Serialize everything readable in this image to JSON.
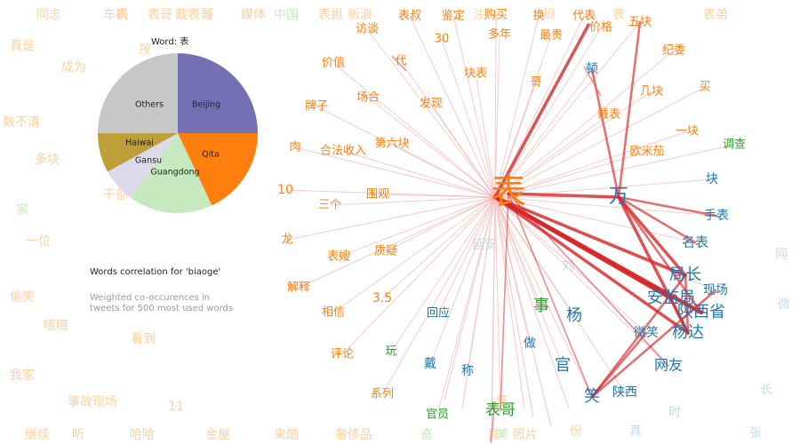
{
  "pie": {
    "title": "Word: 表",
    "slices": [
      {
        "label": "Beijing",
        "value": 25,
        "color": "#7570b3"
      },
      {
        "label": "Qita",
        "value": 18,
        "color": "#ff7f0e"
      },
      {
        "label": "Guangdong",
        "value": 17,
        "color": "#c7e9c0"
      },
      {
        "label": "Gansu",
        "value": 7,
        "color": "#dadaeb"
      },
      {
        "label": "Haiwai",
        "value": 8,
        "color": "#bd9e39"
      },
      {
        "label": "Others",
        "value": 25,
        "color": "#c7c7c7"
      }
    ]
  },
  "caption": {
    "title": "Words correlation for 'biaoge'",
    "subtitle_line1": "Weighted co-occurences in",
    "subtitle_line2": "tweets for 500 most used words"
  },
  "colors": {
    "orange": "#ff7f0e",
    "blue": "#1f77b4",
    "green": "#2ca02c",
    "edge": "#d62728",
    "faint_orange": "#fdd0a2",
    "faint_blue": "#c6dbef",
    "faint_green": "#c7e9c0"
  },
  "chart_data": {
    "type": "network",
    "title": "Words correlation for 'biaoge'",
    "nodes": [
      {
        "id": "n1",
        "label": "表",
        "color": "#ff7f0e",
        "size": 40
      },
      {
        "id": "n2",
        "label": "万",
        "color": "#1f77b4",
        "size": 22
      },
      {
        "id": "n3",
        "label": "表哥",
        "color": "#2ca02c",
        "size": 17
      },
      {
        "id": "n4",
        "label": "局长",
        "color": "#1f77b4",
        "size": 18
      },
      {
        "id": "n5",
        "label": "安监局",
        "color": "#1f77b4",
        "size": 18
      },
      {
        "id": "n6",
        "label": "陕西省",
        "color": "#1f77b4",
        "size": 18
      },
      {
        "id": "n7",
        "label": "杨达",
        "color": "#1f77b4",
        "size": 18
      },
      {
        "id": "n8",
        "label": "杨",
        "color": "#1f77b4",
        "size": 18
      },
      {
        "id": "n9",
        "label": "事",
        "color": "#2ca02c",
        "size": 18
      },
      {
        "id": "n10",
        "label": "官",
        "color": "#1f77b4",
        "size": 18
      },
      {
        "id": "n11",
        "label": "笑",
        "color": "#1f77b4",
        "size": 18
      },
      {
        "id": "n12",
        "label": "网友",
        "color": "#1f77b4",
        "size": 16
      },
      {
        "id": "n13",
        "label": "微笑",
        "color": "#1f77b4",
        "size": 14
      },
      {
        "id": "n14",
        "label": "现场",
        "color": "#1f77b4",
        "size": 14
      },
      {
        "id": "n15",
        "label": "名表",
        "color": "#1f77b4",
        "size": 15
      },
      {
        "id": "n16",
        "label": "手表",
        "color": "#1f77b4",
        "size": 14
      },
      {
        "id": "n17",
        "label": "块",
        "color": "#1f77b4",
        "size": 14
      },
      {
        "id": "n18",
        "label": "陕西",
        "color": "#1f77b4",
        "size": 14
      },
      {
        "id": "n19",
        "label": "顿",
        "color": "#1f77b4",
        "size": 14
      },
      {
        "id": "n20",
        "label": "做",
        "color": "#1f77b4",
        "size": 14
      },
      {
        "id": "n21",
        "label": "回应",
        "color": "#1f77b4",
        "size": 13
      },
      {
        "id": "n22",
        "label": "戴",
        "color": "#1f77b4",
        "size": 14
      },
      {
        "id": "n23",
        "label": "称",
        "color": "#1f77b4",
        "size": 14
      },
      {
        "id": "n24",
        "label": "官员",
        "color": "#2ca02c",
        "size": 13
      },
      {
        "id": "n25",
        "label": "玩",
        "color": "#2ca02c",
        "size": 13
      },
      {
        "id": "n26",
        "label": "调查",
        "color": "#2ca02c",
        "size": 13
      },
      {
        "id": "n27",
        "label": "代表",
        "color": "#ff7f0e",
        "size": 13
      },
      {
        "id": "n28",
        "label": "价格",
        "color": "#ff7f0e",
        "size": 13
      },
      {
        "id": "n29",
        "label": "五块",
        "color": "#ff7f0e",
        "size": 13
      },
      {
        "id": "n30",
        "label": "纪委",
        "color": "#ff7f0e",
        "size": 13
      },
      {
        "id": "n31",
        "label": "买",
        "color": "#ff7f0e",
        "size": 13
      },
      {
        "id": "n32",
        "label": "几块",
        "color": "#ff7f0e",
        "size": 13
      },
      {
        "id": "n33",
        "label": "一块",
        "color": "#ff7f0e",
        "size": 13
      },
      {
        "id": "n34",
        "label": "欧米茄",
        "color": "#ff7f0e",
        "size": 13
      },
      {
        "id": "n35",
        "label": "戴表",
        "color": "#ff7f0e",
        "size": 13
      },
      {
        "id": "n36",
        "label": "哥",
        "color": "#ff7f0e",
        "size": 13
      },
      {
        "id": "n37",
        "label": "最贵",
        "color": "#ff7f0e",
        "size": 13
      },
      {
        "id": "n38",
        "label": "换",
        "color": "#ff7f0e",
        "size": 13
      },
      {
        "id": "n39",
        "label": "多年",
        "color": "#ff7f0e",
        "size": 13
      },
      {
        "id": "n40",
        "label": "购买",
        "color": "#ff7f0e",
        "size": 13
      },
      {
        "id": "n41",
        "label": "鉴定",
        "color": "#ff7f0e",
        "size": 13
      },
      {
        "id": "n42",
        "label": "表叔",
        "color": "#ff7f0e",
        "size": 13
      },
      {
        "id": "n43",
        "label": "30",
        "color": "#ff7f0e",
        "size": 13
      },
      {
        "id": "n44",
        "label": "访谈",
        "color": "#ff7f0e",
        "size": 13
      },
      {
        "id": "n45",
        "label": "价值",
        "color": "#ff7f0e",
        "size": 13
      },
      {
        "id": "n46",
        "label": "代",
        "color": "#ff7f0e",
        "size": 13
      },
      {
        "id": "n47",
        "label": "块表",
        "color": "#ff7f0e",
        "size": 13
      },
      {
        "id": "n48",
        "label": "牌子",
        "color": "#ff7f0e",
        "size": 13
      },
      {
        "id": "n49",
        "label": "场合",
        "color": "#ff7f0e",
        "size": 13
      },
      {
        "id": "n50",
        "label": "发现",
        "color": "#ff7f0e",
        "size": 13
      },
      {
        "id": "n51",
        "label": "肉",
        "color": "#ff7f0e",
        "size": 13
      },
      {
        "id": "n52",
        "label": "合法收入",
        "color": "#ff7f0e",
        "size": 13
      },
      {
        "id": "n53",
        "label": "第六块",
        "color": "#ff7f0e",
        "size": 13
      },
      {
        "id": "n54",
        "label": "10",
        "color": "#ff7f0e",
        "size": 14
      },
      {
        "id": "n55",
        "label": "三个",
        "color": "#ff7f0e",
        "size": 13
      },
      {
        "id": "n56",
        "label": "围观",
        "color": "#ff7f0e",
        "size": 13
      },
      {
        "id": "n57",
        "label": "龙",
        "color": "#ff7f0e",
        "size": 13
      },
      {
        "id": "n58",
        "label": "表嫂",
        "color": "#ff7f0e",
        "size": 13
      },
      {
        "id": "n59",
        "label": "质疑",
        "color": "#ff7f0e",
        "size": 13
      },
      {
        "id": "n60",
        "label": "解释",
        "color": "#ff7f0e",
        "size": 13
      },
      {
        "id": "n61",
        "label": "3.5",
        "color": "#ff7f0e",
        "size": 14
      },
      {
        "id": "n62",
        "label": "相信",
        "color": "#ff7f0e",
        "size": 13
      },
      {
        "id": "n63",
        "label": "评论",
        "color": "#ff7f0e",
        "size": 13
      },
      {
        "id": "n64",
        "label": "系列",
        "color": "#ff7f0e",
        "size": 13
      }
    ],
    "edges": [
      {
        "source": "n1",
        "target": "n5",
        "weight": 4
      },
      {
        "source": "n1",
        "target": "n6",
        "weight": 4
      },
      {
        "source": "n1",
        "target": "n4",
        "weight": 3
      },
      {
        "source": "n1",
        "target": "n7",
        "weight": 3
      },
      {
        "source": "n1",
        "target": "n2",
        "weight": 3
      },
      {
        "source": "n1",
        "target": "n27",
        "weight": 3
      },
      {
        "source": "n2",
        "target": "n4",
        "weight": 3
      },
      {
        "source": "n2",
        "target": "n7",
        "weight": 3
      },
      {
        "source": "n2",
        "target": "n6",
        "weight": 2
      },
      {
        "source": "n2",
        "target": "n15",
        "weight": 2
      },
      {
        "source": "n2",
        "target": "n16",
        "weight": 2
      },
      {
        "source": "n2",
        "target": "n29",
        "weight": 2
      },
      {
        "source": "n2",
        "target": "n19",
        "weight": 2
      },
      {
        "source": "n5",
        "target": "n7",
        "weight": 2
      },
      {
        "source": "n4",
        "target": "n7",
        "weight": 2
      },
      {
        "source": "n11",
        "target": "n14",
        "weight": 2
      },
      {
        "source": "n11",
        "target": "n13",
        "weight": 2
      },
      {
        "source": "n11",
        "target": "n4",
        "weight": 2
      },
      {
        "source": "n1",
        "target": "n3",
        "weight": 1
      },
      {
        "source": "n1",
        "target": "n11",
        "weight": 1
      },
      {
        "source": "n1",
        "target": "n12",
        "weight": 1
      }
    ]
  },
  "background_words": [
    {
      "label": "同志",
      "color": "#fdd0a2"
    },
    {
      "label": "车祸",
      "color": "#fdd0a2"
    },
    {
      "label": "表哥",
      "color": "#fdd0a2"
    },
    {
      "label": "戴表哥",
      "color": "#fdd0a2"
    },
    {
      "label": "媒体",
      "color": "#fdd0a2"
    },
    {
      "label": "中国",
      "color": "#c7e9c0"
    },
    {
      "label": "表姐",
      "color": "#fdd0a2"
    },
    {
      "label": "新浪",
      "color": "#fdd0a2"
    },
    {
      "label": "表弟",
      "color": "#fdd0a2"
    },
    {
      "label": "真是",
      "color": "#fdd0a2"
    },
    {
      "label": "成为",
      "color": "#fdd0a2"
    },
    {
      "label": "数不清",
      "color": "#fdd0a2"
    },
    {
      "label": "多块",
      "color": "#fdd0a2"
    },
    {
      "label": "家",
      "color": "#c7e9c0"
    },
    {
      "label": "一位",
      "color": "#fdd0a2"
    },
    {
      "label": "干部",
      "color": "#fdd0a2"
    },
    {
      "label": "偷笑",
      "color": "#fdd0a2"
    },
    {
      "label": "嘻嘻",
      "color": "#fdd0a2"
    },
    {
      "label": "看到",
      "color": "#fdd0a2"
    },
    {
      "label": "我家",
      "color": "#fdd0a2"
    },
    {
      "label": "事故现场",
      "color": "#fdd0a2"
    },
    {
      "label": "11",
      "color": "#fdd0a2"
    },
    {
      "label": "继续",
      "color": "#fdd0a2"
    },
    {
      "label": "听",
      "color": "#fdd0a2"
    },
    {
      "label": "哈哈",
      "color": "#fdd0a2"
    },
    {
      "label": "金屋",
      "color": "#fdd0a2"
    },
    {
      "label": "来酷",
      "color": "#fdd0a2"
    },
    {
      "label": "奢侈品",
      "color": "#fdd0a2"
    },
    {
      "label": "照片",
      "color": "#fdd0a2"
    },
    {
      "label": "真",
      "color": "#c6dbef"
    },
    {
      "label": "张",
      "color": "#c6dbef"
    },
    {
      "label": "时",
      "color": "#c6dbef"
    },
    {
      "label": "长",
      "color": "#c6dbef"
    },
    {
      "label": "微",
      "color": "#c6dbef"
    },
    {
      "label": "网",
      "color": "#c6dbef"
    },
    {
      "label": "延安",
      "color": "#c6dbef"
    },
    {
      "label": "刘",
      "color": "#c6dbef"
    },
    {
      "label": "信",
      "color": "#fdd0a2"
    }
  ]
}
